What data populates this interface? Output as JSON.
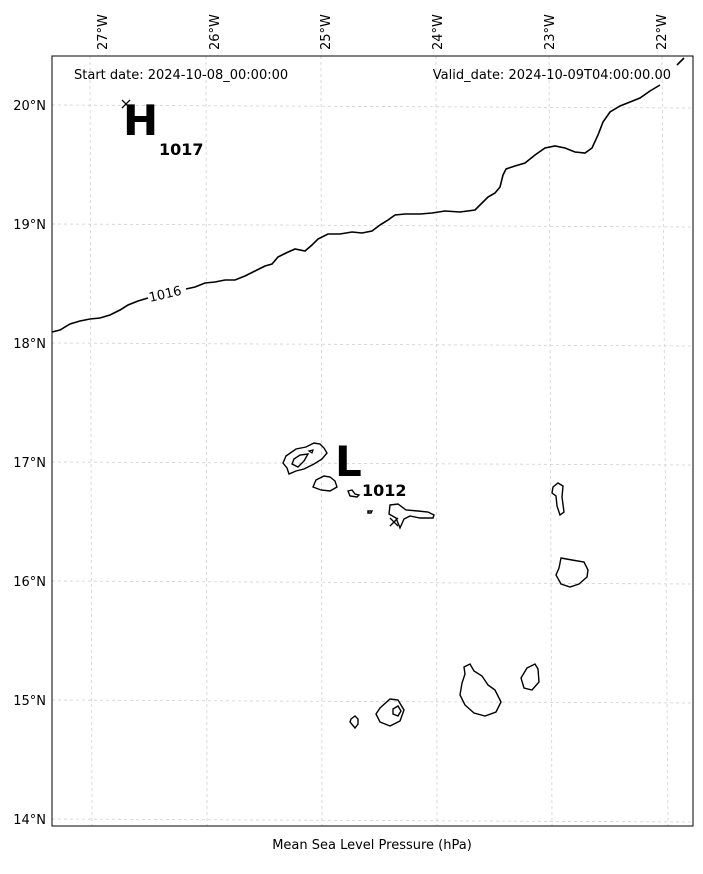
{
  "header": {
    "start_date": "Start date: 2024-10-08_00:00:00",
    "valid_date": "Valid_date: 2024-10-09T04:00:00.00"
  },
  "axes": {
    "lon_labels": [
      "27°W",
      "26°W",
      "25°W",
      "24°W",
      "23°W",
      "22°W"
    ],
    "lat_labels": [
      "20°N",
      "19°N",
      "18°N",
      "17°N",
      "16°N",
      "15°N",
      "14°N"
    ]
  },
  "isobar_label": "1016",
  "pressure_centers": {
    "high": {
      "letter": "H",
      "value": "1017"
    },
    "low": {
      "letter": "L",
      "value": "1012"
    }
  },
  "caption": "Mean Sea Level Pressure (hPa)",
  "colors": {
    "gridline": "#d0d0d0",
    "contour": "#000000",
    "frame": "#000000"
  }
}
